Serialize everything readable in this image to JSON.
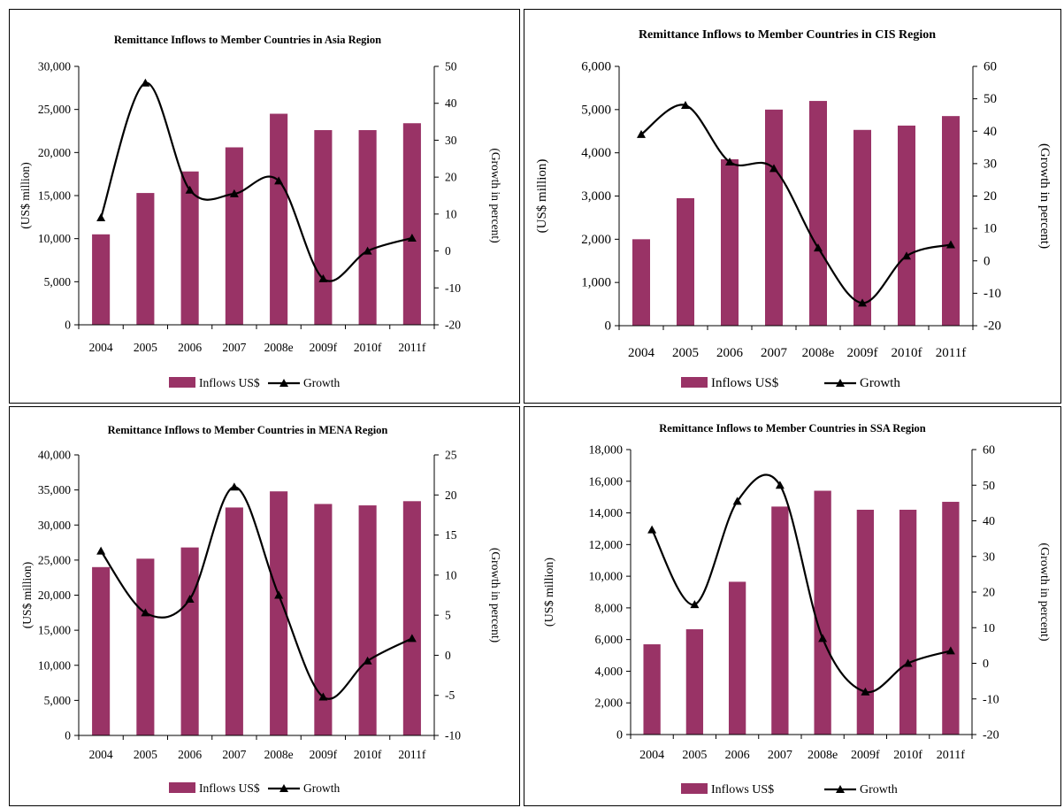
{
  "colors": {
    "bar": "#993366",
    "line": "#000000"
  },
  "legend": {
    "bar_label": "Inflows US$",
    "line_label": "Growth"
  },
  "chart_data": [
    {
      "type": "bar",
      "title": "Remittance Inflows to Member Countries in Asia Region",
      "ylabel": "(US$ million)",
      "y2label": "(Growth in percent)",
      "categories": [
        "2004",
        "2005",
        "2006",
        "2007",
        "2008e",
        "2009f",
        "2010f",
        "2011f"
      ],
      "ylim": [
        0,
        30000
      ],
      "ystep": 5000,
      "y2lim": [
        -20,
        50
      ],
      "y2step": 10,
      "yticks": [
        "0",
        "5,000",
        "10,000",
        "15,000",
        "20,000",
        "25,000",
        "30,000"
      ],
      "y2ticks": [
        "-20",
        "-10",
        "0",
        "10",
        "20",
        "30",
        "40",
        "50"
      ],
      "series": [
        {
          "name": "Inflows US$",
          "kind": "bar",
          "axis": "left",
          "values": [
            10500,
            15300,
            17800,
            20600,
            24500,
            22600,
            22600,
            23400
          ]
        },
        {
          "name": "Growth",
          "kind": "line",
          "axis": "right",
          "values": [
            9,
            45.5,
            16.5,
            15.5,
            19,
            -7.5,
            0,
            3.5
          ]
        }
      ],
      "legend_position": "bottom"
    },
    {
      "type": "bar",
      "title": "Remittance Inflows to Member Countries in CIS Region",
      "ylabel": "(US$ million)",
      "y2label": "(Growth in percent)",
      "categories": [
        "2004",
        "2005",
        "2006",
        "2007",
        "2008e",
        "2009f",
        "2010f",
        "2011f"
      ],
      "ylim": [
        0,
        6000
      ],
      "ystep": 1000,
      "y2lim": [
        -20,
        60
      ],
      "y2step": 10,
      "yticks": [
        "0",
        "1,000",
        "2,000",
        "3,000",
        "4,000",
        "5,000",
        "6,000"
      ],
      "y2ticks": [
        "-20",
        "-10",
        "0",
        "10",
        "20",
        "30",
        "40",
        "50",
        "60"
      ],
      "series": [
        {
          "name": "Inflows US$",
          "kind": "bar",
          "axis": "left",
          "values": [
            2000,
            2950,
            3850,
            5000,
            5200,
            4530,
            4630,
            4850
          ]
        },
        {
          "name": "Growth",
          "kind": "line",
          "axis": "right",
          "values": [
            39,
            48,
            30.5,
            28.5,
            4,
            -13,
            1.5,
            5
          ]
        }
      ],
      "legend_position": "bottom"
    },
    {
      "type": "bar",
      "title": "Remittance Inflows to Member Countries in MENA Region",
      "ylabel": "(US$ million)",
      "y2label": "(Growth in percent)",
      "categories": [
        "2004",
        "2005",
        "2006",
        "2007",
        "2008e",
        "2009f",
        "2010f",
        "2011f"
      ],
      "ylim": [
        0,
        40000
      ],
      "ystep": 5000,
      "y2lim": [
        -10,
        25
      ],
      "y2step": 5,
      "yticks": [
        "0",
        "5,000",
        "10,000",
        "15,000",
        "20,000",
        "25,000",
        "30,000",
        "35,000",
        "40,000"
      ],
      "y2ticks": [
        "-10",
        "-5",
        "0",
        "5",
        "10",
        "15",
        "20",
        "25"
      ],
      "series": [
        {
          "name": "Inflows US$",
          "kind": "bar",
          "axis": "left",
          "values": [
            24000,
            25200,
            26800,
            32500,
            34800,
            33000,
            32800,
            33400
          ]
        },
        {
          "name": "Growth",
          "kind": "line",
          "axis": "right",
          "values": [
            13,
            5.3,
            7,
            21,
            7.5,
            -5.2,
            -0.7,
            2.1
          ]
        }
      ],
      "legend_position": "bottom"
    },
    {
      "type": "bar",
      "title": "Remittance Inflows to Member Countries in SSA Region",
      "ylabel": "(US$ million)",
      "y2label": "(Growth in percent)",
      "categories": [
        "2004",
        "2005",
        "2006",
        "2007",
        "2008e",
        "2009f",
        "2010f",
        "2011f"
      ],
      "ylim": [
        0,
        18000
      ],
      "ystep": 2000,
      "y2lim": [
        -20,
        60
      ],
      "y2step": 10,
      "yticks": [
        "0",
        "2,000",
        "4,000",
        "6,000",
        "8,000",
        "10,000",
        "12,000",
        "14,000",
        "16,000",
        "18,000"
      ],
      "y2ticks": [
        "-20",
        "-10",
        "0",
        "10",
        "20",
        "30",
        "40",
        "50",
        "60"
      ],
      "series": [
        {
          "name": "Inflows US$",
          "kind": "bar",
          "axis": "left",
          "values": [
            5700,
            6650,
            9650,
            14400,
            15400,
            14200,
            14200,
            14700
          ]
        },
        {
          "name": "Growth",
          "kind": "line",
          "axis": "right",
          "values": [
            37.5,
            16.5,
            45.5,
            50,
            7,
            -8,
            0,
            3.5
          ]
        }
      ],
      "legend_position": "bottom"
    }
  ]
}
